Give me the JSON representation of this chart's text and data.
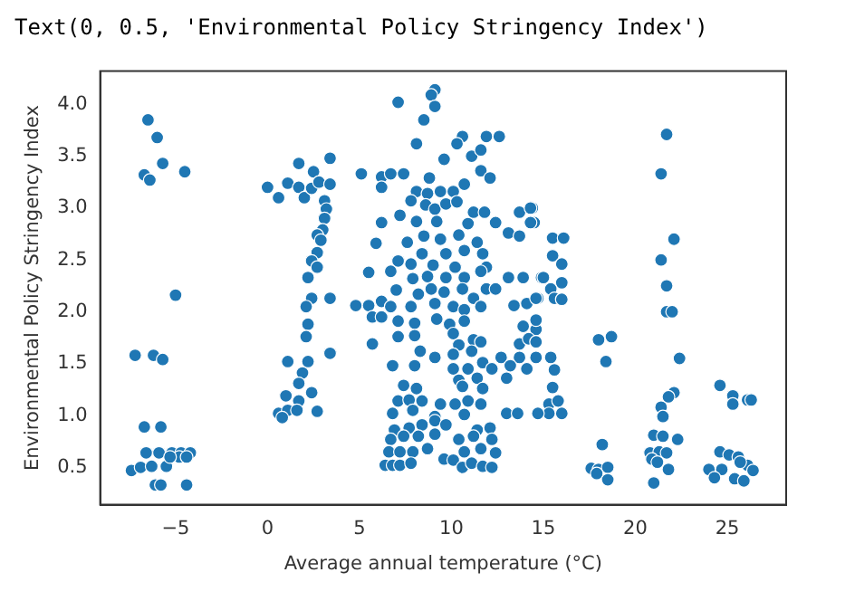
{
  "chart_data": {
    "type": "scatter",
    "annotations": [
      "Text(0, 0.5, 'Environmental Policy Stringency Index')"
    ],
    "xlabel": "Average annual temperature (°C)",
    "ylabel": "Environmental Policy Stringency Index",
    "xlim": [
      -9.1,
      28.2
    ],
    "ylim": [
      0.14,
      4.32
    ],
    "xticks": [
      -5,
      0,
      5,
      10,
      15,
      20,
      25
    ],
    "yticks": [
      0.5,
      {
        "value": 1,
        "label": "1.0"
      },
      1.5,
      {
        "value": 2,
        "label": "2.0"
      },
      2.5,
      {
        "value": 3,
        "label": "3.0"
      },
      3.5,
      {
        "value": 4,
        "label": "4.0"
      }
    ],
    "grid": false,
    "marker": "circle",
    "color": "#1f77b4",
    "x": [
      -6.5,
      -6.0,
      -5.7,
      -4.5,
      -6.7,
      -6.4,
      -5.0,
      -7.2,
      -6.2,
      -5.7,
      -6.7,
      -5.8,
      -6.6,
      -5.9,
      -5.2,
      -4.7,
      -4.2,
      -7.4,
      -6.9,
      -6.3,
      -5.5,
      -4.8,
      -4.4,
      -5.3,
      -6.1,
      -5.8,
      -4.4,
      0.0,
      0.6,
      1.1,
      1.7,
      1.7,
      2.0,
      2.5,
      2.4,
      2.8,
      3.4,
      3.4,
      3.1,
      3.2,
      3.1,
      3.0,
      2.7,
      2.9,
      2.7,
      2.4,
      2.2,
      2.7,
      2.4,
      3.4,
      2.1,
      2.2,
      2.1,
      3.4,
      1.1,
      2.2,
      1.9,
      1.7,
      2.4,
      1.0,
      1.7,
      2.7,
      0.6,
      1.1,
      1.6,
      0.8,
      9.1,
      8.9,
      9.1,
      7.1,
      8.5,
      8.1,
      10.6,
      10.3,
      11.9,
      12.6,
      11.1,
      11.6,
      9.6,
      11.6,
      12.1,
      5.1,
      6.2,
      6.7,
      7.4,
      6.2,
      8.8,
      10.7,
      8.1,
      8.7,
      9.4,
      10.1,
      7.8,
      8.6,
      9.1,
      9.7,
      10.3,
      7.2,
      8.1,
      9.2,
      11.2,
      11.8,
      12.4,
      6.2,
      10.9,
      13.7,
      14.4,
      14.5,
      13.1,
      13.7,
      5.9,
      7.6,
      8.5,
      9.4,
      10.4,
      11.4,
      8.4,
      9.7,
      10.7,
      11.7,
      7.1,
      7.8,
      9.0,
      10.2,
      11.9,
      6.7,
      8.7,
      9.7,
      10.7,
      11.6,
      5.5,
      7.9,
      11.9,
      12.4,
      13.1,
      13.9,
      14.9,
      7.0,
      8.2,
      8.9,
      9.6,
      10.6,
      11.2,
      4.8,
      5.5,
      6.2,
      6.7,
      7.8,
      9.1,
      10.1,
      10.7,
      11.6,
      13.4,
      14.1,
      14.7,
      5.7,
      6.2,
      7.1,
      8.0,
      9.2,
      9.9,
      10.7,
      7.1,
      8.0,
      10.1,
      11.2,
      13.9,
      14.6,
      5.7,
      10.4,
      11.6,
      13.7,
      14.2,
      8.3,
      9.1,
      10.1,
      11.1,
      12.7,
      13.7,
      14.6,
      6.8,
      8.0,
      10.1,
      10.9,
      11.7,
      12.2,
      13.2,
      14.1,
      10.4,
      11.4,
      13.0,
      7.4,
      8.1,
      10.6,
      11.7,
      7.1,
      7.7,
      8.4,
      9.4,
      10.2,
      10.9,
      11.6,
      6.8,
      7.9,
      9.1,
      10.7,
      13.0,
      13.6,
      6.9,
      7.7,
      8.4,
      9.1,
      9.7,
      11.4,
      12.1,
      6.7,
      7.4,
      8.2,
      9.1,
      10.4,
      11.2,
      12.2,
      6.6,
      7.2,
      7.9,
      8.7,
      10.7,
      11.6,
      12.4,
      6.4,
      6.8,
      7.2,
      7.8,
      9.6,
      10.1,
      10.6,
      11.1,
      11.7,
      12.2,
      14.3,
      14.3,
      15.5,
      16.1,
      15.5,
      16.0,
      15.0,
      16.0,
      15.4,
      15.6,
      16.0,
      14.6,
      14.6,
      14.6,
      15.4,
      15.6,
      15.5,
      15.3,
      15.8,
      16.0,
      15.3,
      14.7,
      18.0,
      18.7,
      18.4,
      18.2,
      17.6,
      18.0,
      18.5,
      17.9,
      18.5,
      21.7,
      21.4,
      22.1,
      21.4,
      21.7,
      21.7,
      22.0,
      22.4,
      22.1,
      21.8,
      21.4,
      21.5,
      21.0,
      21.5,
      22.3,
      20.8,
      21.3,
      21.7,
      20.9,
      21.2,
      21.8,
      21.0,
      24.6,
      25.3,
      25.3,
      26.1,
      26.3,
      24.6,
      25.1,
      25.6,
      24.0,
      24.7,
      24.3,
      25.4,
      25.9,
      26.1,
      26.4,
      25.7
    ],
    "values": [
      3.85,
      3.68,
      3.43,
      3.35,
      3.32,
      3.27,
      2.16,
      1.58,
      1.58,
      1.54,
      0.89,
      0.89,
      0.64,
      0.64,
      0.64,
      0.64,
      0.64,
      0.47,
      0.5,
      0.51,
      0.51,
      0.6,
      0.6,
      0.6,
      0.33,
      0.33,
      0.33,
      3.2,
      3.1,
      3.24,
      3.43,
      3.2,
      3.1,
      3.35,
      3.19,
      3.25,
      3.48,
      3.23,
      3.07,
      2.99,
      2.9,
      2.79,
      2.74,
      2.69,
      2.57,
      2.49,
      2.33,
      2.43,
      2.13,
      2.13,
      2.05,
      1.88,
      1.76,
      1.6,
      1.52,
      1.52,
      1.41,
      1.31,
      1.22,
      1.19,
      1.14,
      1.04,
      1.02,
      1.05,
      1.05,
      0.98,
      4.14,
      4.09,
      3.98,
      4.02,
      3.85,
      3.62,
      3.69,
      3.62,
      3.69,
      3.69,
      3.5,
      3.56,
      3.47,
      3.36,
      3.29,
      3.33,
      3.3,
      3.33,
      3.33,
      3.2,
      3.29,
      3.23,
      3.16,
      3.14,
      3.16,
      3.16,
      3.07,
      3.03,
      2.99,
      3.04,
      3.06,
      2.93,
      2.87,
      2.87,
      2.96,
      2.96,
      2.86,
      2.86,
      2.85,
      2.96,
      3.0,
      2.86,
      2.76,
      2.73,
      2.66,
      2.67,
      2.73,
      2.7,
      2.74,
      2.67,
      2.56,
      2.56,
      2.59,
      2.56,
      2.49,
      2.46,
      2.45,
      2.43,
      2.43,
      2.39,
      2.34,
      2.33,
      2.33,
      2.39,
      2.38,
      2.32,
      2.22,
      2.22,
      2.33,
      2.33,
      2.33,
      2.21,
      2.17,
      2.22,
      2.19,
      2.22,
      2.13,
      2.06,
      2.06,
      2.1,
      2.05,
      2.05,
      2.08,
      2.05,
      2.02,
      2.05,
      2.06,
      2.08,
      2.13,
      1.95,
      1.95,
      1.91,
      1.89,
      1.93,
      1.88,
      1.91,
      1.76,
      1.77,
      1.79,
      1.73,
      1.86,
      1.83,
      1.69,
      1.68,
      1.71,
      1.69,
      1.74,
      1.62,
      1.56,
      1.59,
      1.62,
      1.56,
      1.56,
      1.56,
      1.48,
      1.48,
      1.45,
      1.45,
      1.51,
      1.45,
      1.48,
      1.45,
      1.34,
      1.36,
      1.36,
      1.29,
      1.26,
      1.28,
      1.26,
      1.14,
      1.15,
      1.14,
      1.11,
      1.11,
      1.14,
      1.11,
      1.02,
      1.05,
      0.99,
      1.01,
      1.02,
      1.02,
      0.86,
      0.88,
      0.91,
      0.95,
      0.91,
      0.86,
      0.88,
      0.77,
      0.8,
      0.8,
      0.82,
      0.77,
      0.8,
      0.77,
      0.65,
      0.65,
      0.65,
      0.68,
      0.65,
      0.68,
      0.64,
      0.52,
      0.52,
      0.52,
      0.54,
      0.58,
      0.57,
      0.5,
      0.54,
      0.51,
      0.5,
      3.0,
      2.86,
      2.71,
      2.71,
      2.54,
      2.46,
      2.33,
      2.28,
      2.22,
      2.13,
      2.12,
      2.13,
      1.92,
      1.71,
      1.56,
      1.44,
      1.27,
      1.11,
      1.14,
      1.02,
      1.02,
      1.02,
      1.73,
      1.76,
      1.52,
      0.72,
      0.49,
      0.48,
      0.5,
      0.44,
      0.38,
      3.71,
      3.33,
      2.7,
      2.5,
      2.25,
      2.0,
      2.0,
      1.55,
      1.22,
      1.18,
      1.08,
      0.99,
      0.81,
      0.8,
      0.77,
      0.64,
      0.65,
      0.64,
      0.58,
      0.55,
      0.48,
      0.35,
      1.29,
      1.19,
      1.11,
      1.15,
      1.15,
      0.65,
      0.62,
      0.6,
      0.48,
      0.48,
      0.4,
      0.39,
      0.37,
      0.52,
      0.47,
      0.55
    ]
  }
}
